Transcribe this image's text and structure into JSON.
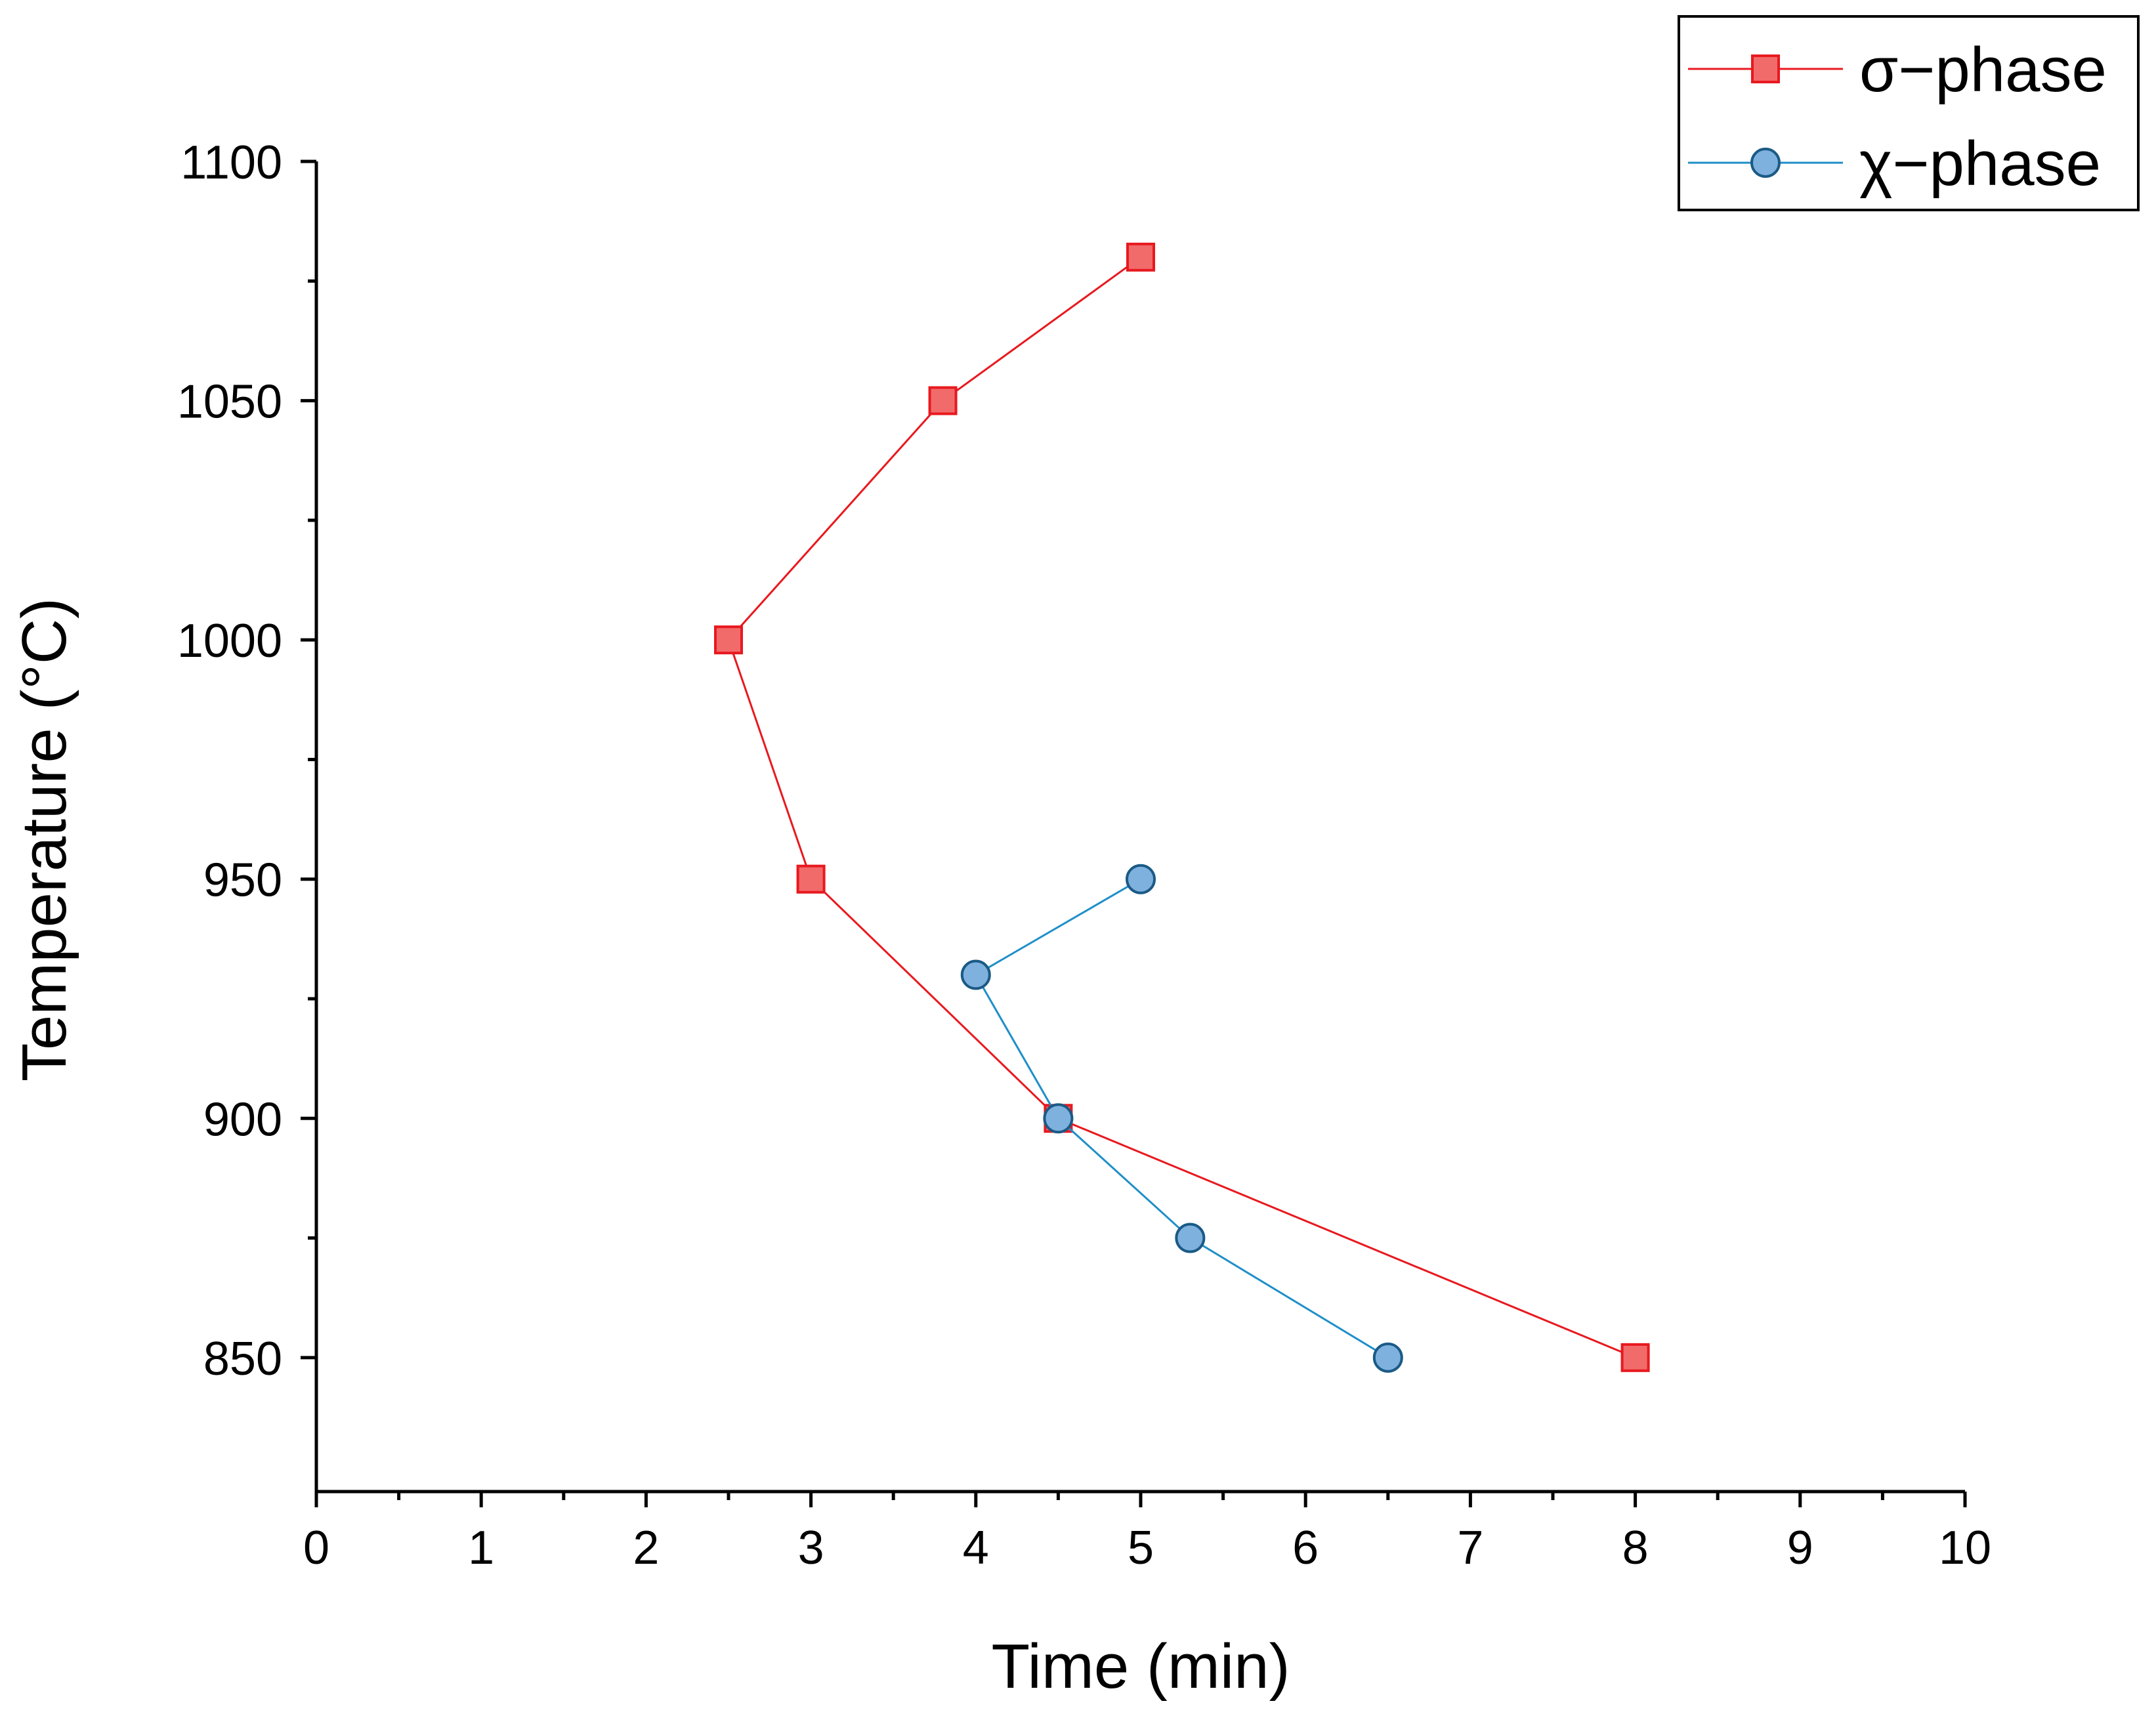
{
  "chart_data": {
    "type": "line",
    "title": "",
    "xlabel": "Time (min)",
    "ylabel": "Temperature (°C)",
    "xlim": [
      0,
      10
    ],
    "ylim": [
      822,
      1100
    ],
    "xticks": [
      0,
      1,
      2,
      3,
      4,
      5,
      6,
      7,
      8,
      9,
      10
    ],
    "yticks": [
      850,
      900,
      950,
      1000,
      1050,
      1100
    ],
    "xtick_labels": [
      "0",
      "1",
      "2",
      "3",
      "4",
      "5",
      "6",
      "7",
      "8",
      "9",
      "10"
    ],
    "ytick_labels": [
      "850",
      "900",
      "950",
      "1000",
      "1050",
      "1100"
    ],
    "legend_position": "top-right",
    "series": [
      {
        "name": "σ−phase",
        "marker": "square",
        "color": "#e8191f",
        "fill": "#f26b6b",
        "x": [
          5.0,
          3.8,
          2.5,
          3.0,
          4.5,
          8.0
        ],
        "y": [
          1080,
          1050,
          1000,
          950,
          900,
          850
        ]
      },
      {
        "name": "χ−phase",
        "marker": "circle",
        "color": "#1f8fc8",
        "fill": "#7fb1de",
        "x": [
          5.0,
          4.0,
          4.5,
          5.3,
          6.5
        ],
        "y": [
          950,
          930,
          900,
          875,
          850
        ]
      }
    ]
  }
}
